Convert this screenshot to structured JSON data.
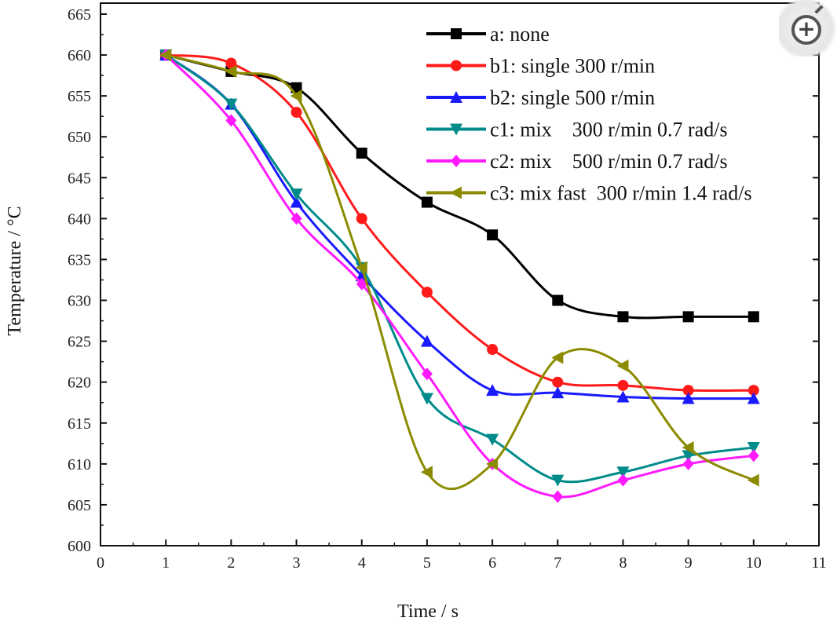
{
  "chart_data": {
    "type": "line",
    "title": "",
    "xlabel": "Time  / s",
    "ylabel": "Temperature  / °C",
    "xlim": [
      0,
      11
    ],
    "ylim": [
      600,
      665
    ],
    "xticks": [
      0,
      1,
      2,
      3,
      4,
      5,
      6,
      7,
      8,
      9,
      10,
      11
    ],
    "yticks": [
      600,
      605,
      610,
      615,
      620,
      625,
      630,
      635,
      640,
      645,
      650,
      655,
      660,
      665
    ],
    "grid": false,
    "legend_position": "top-right",
    "x": [
      1,
      2,
      3,
      4,
      5,
      6,
      7,
      8,
      9,
      10
    ],
    "series": [
      {
        "name": "a: none",
        "color": "#000000",
        "marker": "square",
        "values": [
          660,
          658,
          656,
          648,
          642,
          638,
          630,
          628,
          628,
          628
        ]
      },
      {
        "name": "b1: single 300 r/min",
        "color": "#ff1a1a",
        "marker": "circle",
        "values": [
          660,
          659,
          653,
          640,
          631,
          624,
          620,
          619.6,
          619,
          619
        ]
      },
      {
        "name": "b2: single 500 r/min",
        "color": "#1a1aff",
        "marker": "triangle-up",
        "values": [
          660,
          654,
          642,
          633,
          625,
          619,
          618.7,
          618.2,
          618,
          618
        ]
      },
      {
        "name": "c1: mix    300 r/min 0.7 rad/s",
        "color": "#008b8b",
        "marker": "triangle-down",
        "values": [
          660,
          654,
          643,
          634,
          618,
          613,
          608,
          609,
          611,
          612
        ]
      },
      {
        "name": "c2: mix    500 r/min 0.7 rad/s",
        "color": "#ff1aff",
        "marker": "diamond",
        "values": [
          660,
          652,
          640,
          632,
          621,
          610,
          606,
          608,
          610,
          611
        ]
      },
      {
        "name": "c3: mix fast  300 r/min 1.4 rad/s",
        "color": "#8b8b00",
        "marker": "triangle-left",
        "values": [
          660,
          658,
          655,
          634,
          609,
          610,
          623,
          622,
          612,
          608
        ]
      }
    ]
  },
  "ui": {
    "zoom_button": "zoom-in-icon"
  }
}
